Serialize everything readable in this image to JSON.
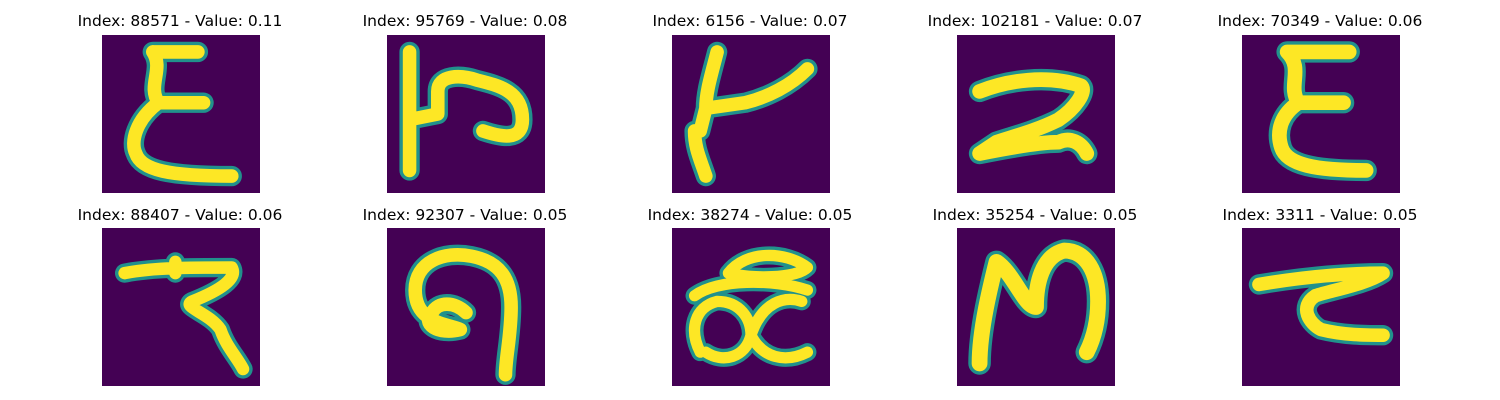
{
  "figure": {
    "colormap": "viridis",
    "background_color": "#440154",
    "stroke_color": "#fde725",
    "panels": [
      {
        "title": "Index: 88571 - Value: 0.11",
        "glyph": "epsilon-like character"
      },
      {
        "title": "Index: 95769 - Value: 0.08",
        "glyph": "character with vertical bar and loop"
      },
      {
        "title": "Index: 6156 - Value: 0.07",
        "glyph": "character with slanted stem and arm"
      },
      {
        "title": "Index: 102181 - Value: 0.07",
        "glyph": "character resembling 2"
      },
      {
        "title": "Index: 70349 - Value: 0.06",
        "glyph": "epsilon-like character"
      },
      {
        "title": "Index: 88407 - Value: 0.06",
        "glyph": "character with top bar and zigzag tail"
      },
      {
        "title": "Index: 92307 - Value: 0.05",
        "glyph": "character resembling 9 with loop"
      },
      {
        "title": "Index: 38274 - Value: 0.05",
        "glyph": "character with loops and top bar"
      },
      {
        "title": "Index: 35254 - Value: 0.05",
        "glyph": "character resembling N"
      },
      {
        "title": "Index: 3311 - Value: 0.05",
        "glyph": "character with top bar and curved tail"
      }
    ]
  }
}
